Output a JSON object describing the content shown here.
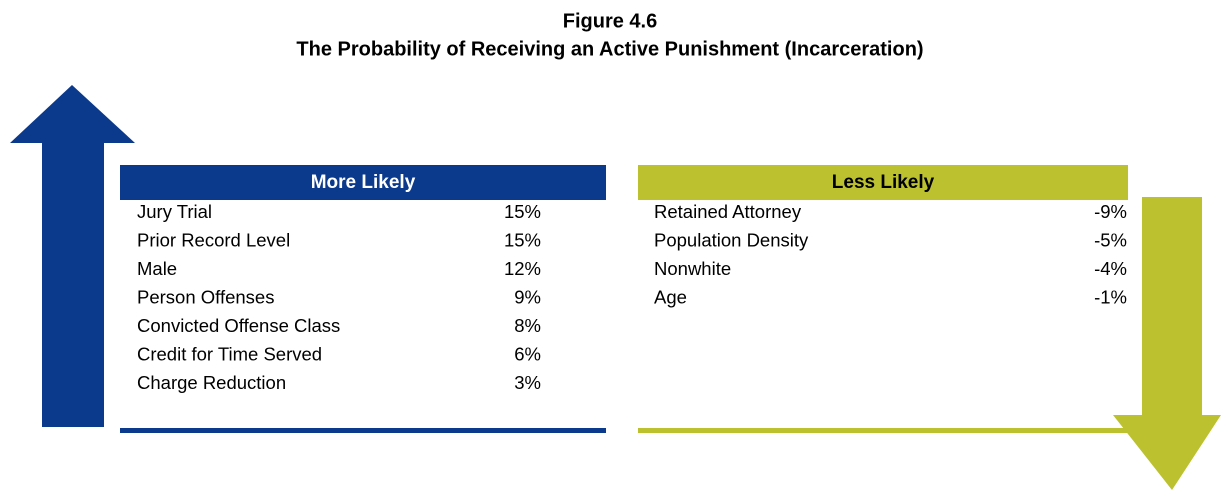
{
  "header": {
    "title": "Figure 4.6",
    "subtitle": "The Probability of Receiving an Active Punishment (Incarceration)"
  },
  "tables": [
    {
      "heading": "More Likely",
      "rows": [
        [
          "Jury Trial",
          "15%"
        ],
        [
          "Prior Record Level",
          "15%"
        ],
        [
          "Male",
          "12%"
        ],
        [
          "Person Offenses",
          "9%"
        ],
        [
          "Convicted Offense Class",
          "8%"
        ],
        [
          "Credit for Time Served",
          "6%"
        ],
        [
          "Charge Reduction",
          "3%"
        ]
      ]
    },
    {
      "heading": "Less Likely",
      "rows": [
        [
          "Retained Attorney",
          "-9%"
        ],
        [
          "Population Density",
          "-5%"
        ],
        [
          "Nonwhite",
          "-4%"
        ],
        [
          "Age",
          "-1%"
        ]
      ]
    }
  ]
}
